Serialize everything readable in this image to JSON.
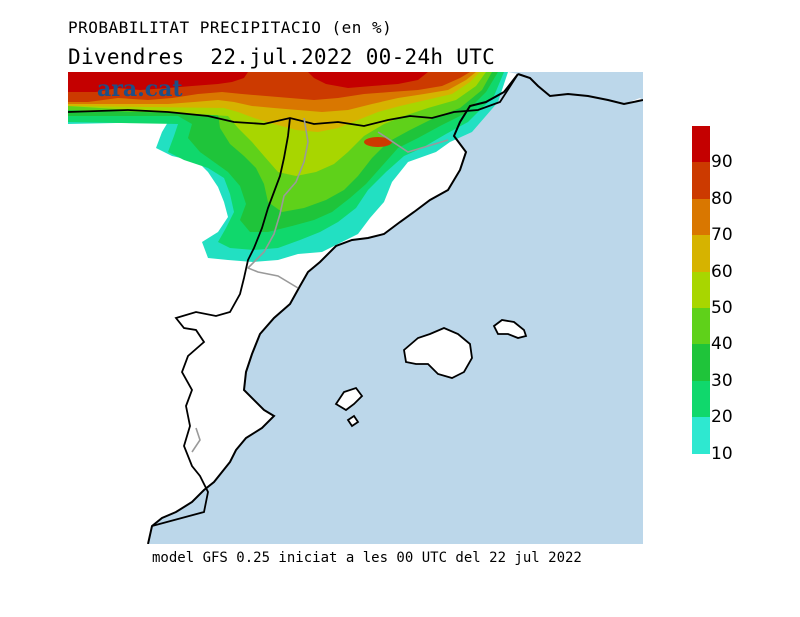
{
  "header": {
    "title": "PROBABILITAT PRECIPITACIO (en %)",
    "subtitle": "Divendres  22.jul.2022 00-24h UTC"
  },
  "logo": {
    "text": "ara.cat"
  },
  "map": {
    "sea_color": "#bcd7ea",
    "land_color": "#ffffff",
    "coast_color": "#000000",
    "border_color": "#9a9a9a"
  },
  "legend": {
    "levels": [
      {
        "label": "90",
        "color": "#c40000"
      },
      {
        "label": "80",
        "color": "#cc3a00"
      },
      {
        "label": "70",
        "color": "#d97700"
      },
      {
        "label": "60",
        "color": "#d6b300"
      },
      {
        "label": "50",
        "color": "#a8d600"
      },
      {
        "label": "40",
        "color": "#5fd11a"
      },
      {
        "label": "30",
        "color": "#1fc43a"
      },
      {
        "label": "20",
        "color": "#10d86c"
      },
      {
        "label": "10",
        "color": "#22e0c2"
      }
    ],
    "top_color": "#c40000",
    "bottom_color": "#2ee8d0"
  },
  "footer": {
    "text": "model GFS 0.25 iniciat a les 00 UTC del 22 jul 2022"
  }
}
